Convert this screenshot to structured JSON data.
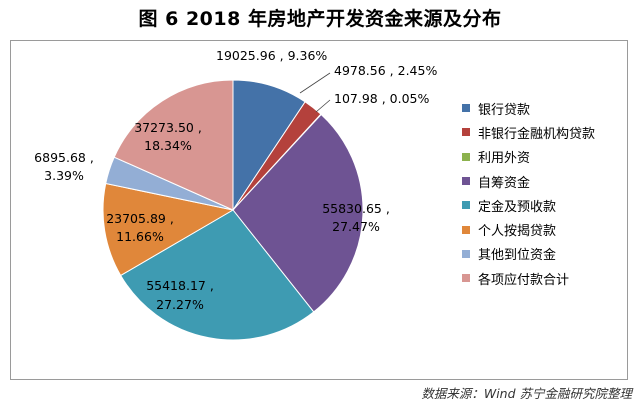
{
  "title": "图 6  2018 年房地产开发资金来源及分布",
  "source_note": "数据来源：Wind  苏宁金融研究院整理",
  "chart_data": {
    "type": "pie",
    "title": "图 6  2018 年房地产开发资金来源及分布",
    "legend_position": "right",
    "slices": [
      {
        "name": "银行贷款",
        "value": 19025.96,
        "percent": 9.36,
        "color": "#4472a8",
        "label": "19025.96 , 9.36%"
      },
      {
        "name": "非银行金融机构贷款",
        "value": 4978.56,
        "percent": 2.45,
        "color": "#b4413c",
        "label": "4978.56 , 2.45%"
      },
      {
        "name": "利用外资",
        "value": 107.98,
        "percent": 0.05,
        "color": "#8cb24d",
        "label": "107.98 , 0.05%"
      },
      {
        "name": "自筹资金",
        "value": 55830.65,
        "percent": 27.47,
        "color": "#6e5393",
        "label_lines": [
          "55830.65 ,",
          "27.47%"
        ]
      },
      {
        "name": "定金及预收款",
        "value": 55418.17,
        "percent": 27.27,
        "color": "#3e9bb2",
        "label_lines": [
          "55418.17 ,",
          "27.27%"
        ]
      },
      {
        "name": "个人按揭贷款",
        "value": 23705.89,
        "percent": 11.66,
        "color": "#e0873a",
        "label_lines": [
          "23705.89 ,",
          "11.66%"
        ]
      },
      {
        "name": "其他到位资金",
        "value": 6895.68,
        "percent": 3.39,
        "color": "#93aed5",
        "label_lines": [
          "6895.68 ,",
          "3.39%"
        ]
      },
      {
        "name": "各项应付款合计",
        "value": 37273.5,
        "percent": 18.34,
        "color": "#d89692",
        "label_lines": [
          "37273.50 ,",
          "18.34%"
        ]
      }
    ]
  }
}
